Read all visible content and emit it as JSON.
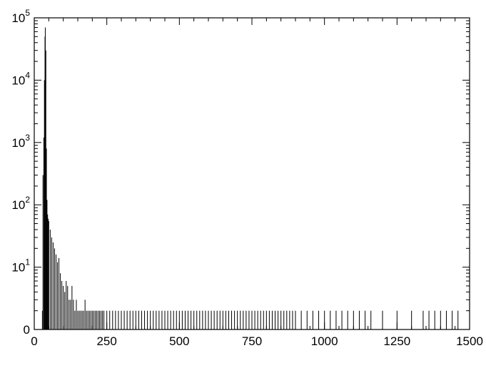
{
  "chart_data": {
    "type": "histogram",
    "title": "",
    "xlabel": "",
    "ylabel": "",
    "xlim": [
      0,
      1500
    ],
    "ylim": [
      1,
      100000
    ],
    "y_scale": "log",
    "grid": false,
    "line_color": "#000000",
    "x_ticks": [
      {
        "value": 0,
        "label": "0"
      },
      {
        "value": 250,
        "label": "250"
      },
      {
        "value": 500,
        "label": "500"
      },
      {
        "value": 750,
        "label": "750"
      },
      {
        "value": 1000,
        "label": "1000"
      },
      {
        "value": 1250,
        "label": "1250"
      },
      {
        "value": 1500,
        "label": "1500"
      }
    ],
    "y_ticks": [
      {
        "value": 1,
        "base": "0",
        "exp": ""
      },
      {
        "value": 10,
        "base": "10",
        "exp": "1"
      },
      {
        "value": 100,
        "base": "10",
        "exp": "2"
      },
      {
        "value": 1000,
        "base": "10",
        "exp": "3"
      },
      {
        "value": 10000,
        "base": "10",
        "exp": "4"
      },
      {
        "value": 100000,
        "base": "10",
        "exp": "5"
      }
    ],
    "x": [
      28,
      30,
      33,
      35,
      37,
      38,
      40,
      42,
      44,
      46,
      48,
      50,
      55,
      60,
      65,
      70,
      75,
      80,
      85,
      90,
      95,
      100,
      105,
      110,
      115,
      120,
      125,
      130,
      135,
      140,
      145,
      150,
      155,
      160,
      165,
      170,
      175,
      180,
      185,
      190,
      195,
      200,
      205,
      210,
      215,
      220,
      225,
      230,
      235,
      240,
      250,
      260,
      270,
      280,
      290,
      300,
      310,
      320,
      330,
      340,
      350,
      360,
      370,
      380,
      390,
      400,
      410,
      420,
      430,
      440,
      450,
      460,
      470,
      480,
      490,
      500,
      510,
      520,
      530,
      540,
      550,
      560,
      570,
      580,
      590,
      600,
      610,
      620,
      630,
      640,
      650,
      660,
      670,
      680,
      690,
      700,
      710,
      720,
      730,
      740,
      750,
      760,
      770,
      780,
      790,
      800,
      810,
      820,
      830,
      840,
      850,
      860,
      870,
      880,
      890,
      900,
      920,
      940,
      960,
      980,
      1000,
      1020,
      1040,
      1060,
      1080,
      1100,
      1120,
      1140,
      1160,
      1200,
      1250,
      1300,
      1340,
      1360,
      1380,
      1400,
      1420,
      1440,
      1460
    ],
    "values": [
      2,
      300,
      1200,
      10000,
      50000,
      70000,
      30000,
      800,
      120,
      70,
      60,
      55,
      40,
      30,
      25,
      20,
      16,
      12,
      14,
      8,
      6,
      5,
      4,
      6,
      5,
      3,
      3,
      5,
      3,
      2,
      3,
      2,
      2,
      2,
      2,
      2,
      3,
      2,
      2,
      2,
      2,
      2,
      2,
      2,
      2,
      2,
      2,
      2,
      2,
      2,
      2,
      2,
      2,
      2,
      2,
      2,
      2,
      2,
      2,
      2,
      2,
      2,
      2,
      2,
      2,
      2,
      2,
      2,
      2,
      2,
      2,
      2,
      2,
      2,
      2,
      2,
      2,
      2,
      2,
      2,
      2,
      2,
      2,
      2,
      2,
      2,
      2,
      2,
      2,
      2,
      2,
      2,
      2,
      2,
      2,
      2,
      2,
      2,
      2,
      2,
      2,
      2,
      2,
      2,
      2,
      2,
      2,
      2,
      2,
      2,
      2,
      2,
      2,
      2,
      2,
      2,
      2,
      2,
      2,
      2,
      2,
      2,
      2,
      2,
      2,
      2,
      2,
      2,
      2,
      2,
      2,
      2,
      2,
      2,
      2,
      2,
      2,
      2,
      2
    ]
  }
}
